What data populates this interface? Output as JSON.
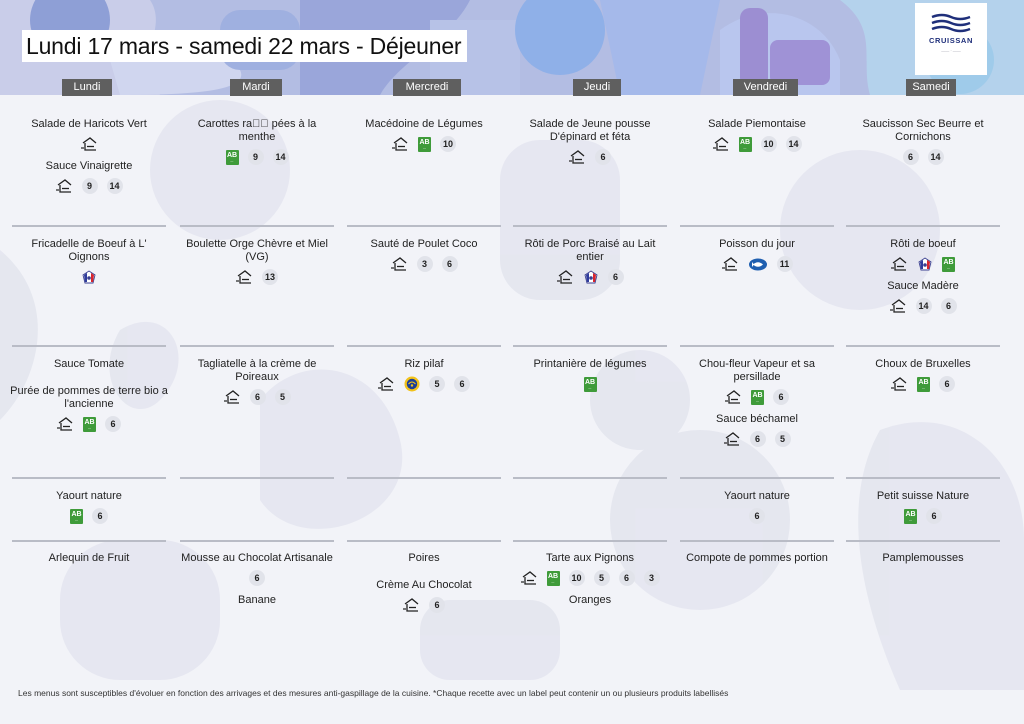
{
  "title": "Lundi 17 mars - samedi 22 mars  - Déjeuner",
  "logo": {
    "text": "CRUISSAN"
  },
  "days": [
    "Lundi",
    "Mardi",
    "Mercredi",
    "Jeudi",
    "Vendredi",
    "Samedi"
  ],
  "rows": [
    [
      [
        {
          "name": "Salade de Haricots Vert",
          "icons": [
            "fait-maison"
          ]
        },
        {
          "name": "Sauce Vinaigrette",
          "icons": [
            "fait-maison",
            "9",
            "14"
          ]
        }
      ],
      [
        {
          "name": "Carottes ra\u0000\u0000 pées à la menthe",
          "icons": [
            "ab",
            "9",
            "14"
          ]
        }
      ],
      [
        {
          "name": "Macédoine de Légumes",
          "icons": [
            "fait-maison",
            "ab",
            "10"
          ]
        }
      ],
      [
        {
          "name": "Salade de Jeune pousse D'épinard et féta",
          "icons": [
            "fait-maison",
            "6"
          ]
        }
      ],
      [
        {
          "name": "Salade Piemontaise",
          "icons": [
            "fait-maison",
            "ab",
            "10",
            "14"
          ]
        }
      ],
      [
        {
          "name": "Saucisson Sec Beurre et Cornichons",
          "icons": [
            "6",
            "14"
          ]
        }
      ]
    ],
    [
      [
        {
          "name": "Fricadelle de Boeuf à L' Oignons",
          "icons": [
            "vbf"
          ]
        }
      ],
      [
        {
          "name": "Boulette Orge Chèvre et Miel (VG)",
          "icons": [
            "fait-maison",
            "13"
          ]
        }
      ],
      [
        {
          "name": "Sauté de Poulet Coco",
          "icons": [
            "fait-maison",
            "3",
            "6"
          ]
        }
      ],
      [
        {
          "name": "Rôti de Porc Braisé au Lait entier",
          "icons": [
            "fait-maison",
            "lpf",
            "6"
          ]
        }
      ],
      [
        {
          "name": "Poisson du jour",
          "icons": [
            "fait-maison",
            "msc",
            "11"
          ]
        }
      ],
      [
        {
          "name": "Rôti de boeuf",
          "icons": [
            "fait-maison",
            "vbf",
            "ab"
          ]
        },
        {
          "name": "Sauce Madère",
          "icons": [
            "fait-maison",
            "14",
            "6"
          ]
        }
      ]
    ],
    [
      [
        {
          "name": "Sauce Tomate",
          "icons": []
        },
        {
          "name": "Purée de pommes de terre bio a l'ancienne",
          "icons": [
            "fait-maison",
            "ab",
            "6"
          ]
        }
      ],
      [
        {
          "name": "Tagliatelle à la crème de Poireaux",
          "icons": [
            "fait-maison",
            "6",
            "5"
          ]
        }
      ],
      [
        {
          "name": "Riz pilaf",
          "icons": [
            "fait-maison",
            "igp",
            "5",
            "6"
          ]
        }
      ],
      [
        {
          "name": "Printanière de légumes",
          "icons": [
            "ab"
          ]
        }
      ],
      [
        {
          "name": "Chou-fleur Vapeur et sa persillade",
          "icons": [
            "fait-maison",
            "ab",
            "6"
          ]
        },
        {
          "name": "Sauce béchamel",
          "icons": [
            "fait-maison",
            "6",
            "5"
          ]
        }
      ],
      [
        {
          "name": "Choux de Bruxelles",
          "icons": [
            "fait-maison",
            "ab",
            "6"
          ]
        }
      ]
    ],
    [
      [
        {
          "name": "Yaourt nature",
          "icons": [
            "ab",
            "6"
          ]
        }
      ],
      [],
      [],
      [],
      [
        {
          "name": "Yaourt nature",
          "icons": [
            "6"
          ]
        }
      ],
      [
        {
          "name": "Petit suisse Nature",
          "icons": [
            "ab",
            "6"
          ]
        }
      ]
    ],
    [
      [
        {
          "name": "Arlequin de Fruit",
          "icons": []
        }
      ],
      [
        {
          "name": "Mousse au Chocolat Artisanale",
          "icons": [
            "6"
          ]
        },
        {
          "name": "Banane",
          "icons": []
        }
      ],
      [
        {
          "name": "Poires",
          "icons": []
        },
        {
          "name": "Crème  Au Chocolat",
          "icons": [
            "fait-maison",
            "6"
          ]
        }
      ],
      [
        {
          "name": "Tarte aux Pignons",
          "icons": [
            "fait-maison",
            "ab",
            "10",
            "5",
            "6",
            "3"
          ]
        },
        {
          "name": "Oranges",
          "icons": []
        }
      ],
      [
        {
          "name": "Compote de pommes portion",
          "icons": []
        }
      ],
      [
        {
          "name": "Pamplemousses",
          "icons": []
        }
      ]
    ]
  ],
  "footer": "Les menus sont susceptibles d'évoluer en fonction des arrivages et des mesures anti-gaspillage de la cuisine. *Chaque recette avec un label peut contenir un ou plusieurs produits labellisés",
  "colors": {
    "header_bg": "#5f5f5f",
    "bio_green": "#3f9b3a",
    "top_band": "#a9b4dd",
    "divider": "#b9bcc6"
  }
}
